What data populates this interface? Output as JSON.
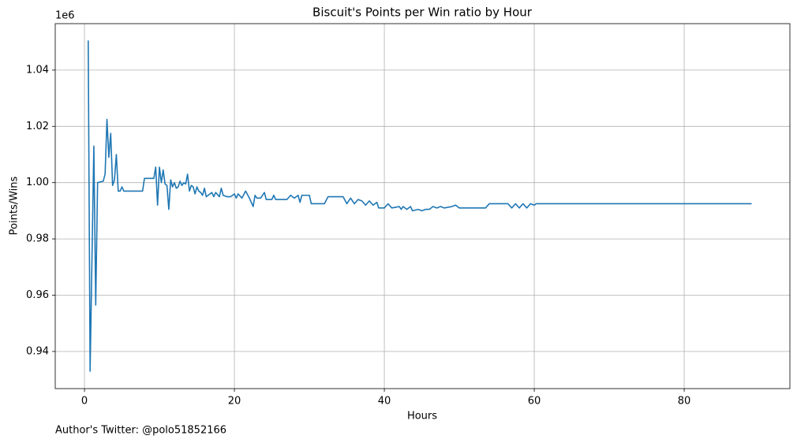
{
  "chart_data": {
    "type": "line",
    "title": "Biscuit's Points per Win ratio by Hour",
    "x_label": "Hours",
    "y_label": "Points/Wins",
    "y_offset_label": "1e6",
    "footer": "Author's Twitter: @polo51852166",
    "grid": true,
    "xlim": [
      -3.9,
      94.1
    ],
    "ylim": [
      0.9268,
      1.0565
    ],
    "xticks": [
      0,
      20,
      40,
      60,
      80
    ],
    "yticks": [
      0.94,
      0.96,
      0.98,
      {
        "value": 1.0,
        "label": "1.00"
      },
      1.02,
      1.04
    ],
    "x": [
      0.5,
      0.75,
      1.25,
      1.5,
      1.75,
      2.5,
      2.75,
      3.0,
      3.25,
      3.5,
      3.75,
      4.0,
      4.25,
      4.5,
      4.75,
      5.0,
      5.25,
      7.75,
      8.0,
      9.25,
      9.5,
      9.75,
      10.0,
      10.25,
      10.5,
      10.75,
      11.0,
      11.25,
      11.5,
      11.75,
      12.0,
      12.25,
      12.5,
      12.75,
      13.0,
      13.25,
      13.5,
      13.75,
      14.0,
      14.25,
      14.5,
      14.75,
      15.0,
      15.25,
      15.5,
      15.75,
      16.0,
      16.25,
      16.5,
      17.0,
      17.25,
      17.5,
      18.0,
      18.25,
      18.5,
      19.0,
      19.5,
      20.0,
      20.25,
      20.5,
      21.0,
      21.5,
      22.0,
      22.5,
      22.75,
      23.0,
      23.5,
      24.0,
      24.25,
      25.0,
      25.25,
      25.5,
      27.0,
      27.5,
      28.0,
      28.5,
      28.75,
      29.0,
      30.0,
      30.25,
      32.0,
      32.5,
      34.5,
      35.0,
      35.5,
      36.0,
      36.5,
      37.0,
      37.5,
      38.0,
      38.5,
      39.0,
      39.25,
      40.0,
      40.5,
      41.0,
      42.0,
      42.25,
      42.5,
      43.0,
      43.5,
      43.75,
      44.5,
      45.0,
      45.5,
      46.0,
      46.5,
      47.0,
      47.5,
      48.0,
      49.0,
      49.5,
      50.0,
      53.5,
      54.0,
      56.5,
      57.0,
      57.5,
      58.0,
      58.5,
      59.0,
      59.5,
      60.0,
      60.25,
      89.0
    ],
    "series": [
      {
        "name": "Points/Wins",
        "color": "#1f77b4",
        "values": [
          1.0505,
          0.933,
          1.013,
          0.9565,
          1.0,
          1.0005,
          1.003,
          1.0225,
          1.009,
          1.0175,
          0.999,
          1.001,
          1.01,
          0.997,
          0.997,
          0.9985,
          0.997,
          0.997,
          1.0015,
          1.0015,
          1.0055,
          0.992,
          1.0055,
          1.0,
          1.0045,
          0.9995,
          0.999,
          0.9905,
          1.001,
          0.9985,
          1.0,
          0.998,
          0.9985,
          1.0005,
          0.999,
          1.0,
          0.9995,
          1.003,
          0.997,
          0.999,
          0.9985,
          0.996,
          0.9985,
          0.997,
          0.9965,
          0.9955,
          0.998,
          0.995,
          0.9955,
          0.9965,
          0.995,
          0.9965,
          0.995,
          0.998,
          0.9955,
          0.995,
          0.995,
          0.996,
          0.9945,
          0.996,
          0.9945,
          0.997,
          0.9945,
          0.9915,
          0.9955,
          0.9945,
          0.9945,
          0.9965,
          0.994,
          0.994,
          0.9955,
          0.994,
          0.994,
          0.9955,
          0.9945,
          0.9955,
          0.993,
          0.9955,
          0.9955,
          0.9925,
          0.9925,
          0.995,
          0.995,
          0.9925,
          0.9945,
          0.9925,
          0.994,
          0.9935,
          0.992,
          0.9935,
          0.992,
          0.993,
          0.991,
          0.991,
          0.9925,
          0.991,
          0.9915,
          0.9905,
          0.9915,
          0.9905,
          0.9915,
          0.99,
          0.9905,
          0.99,
          0.9905,
          0.9905,
          0.9915,
          0.991,
          0.9915,
          0.991,
          0.9915,
          0.992,
          0.991,
          0.991,
          0.9925,
          0.9925,
          0.991,
          0.9925,
          0.991,
          0.9925,
          0.991,
          0.9925,
          0.992,
          0.9925,
          0.9925
        ]
      }
    ]
  }
}
